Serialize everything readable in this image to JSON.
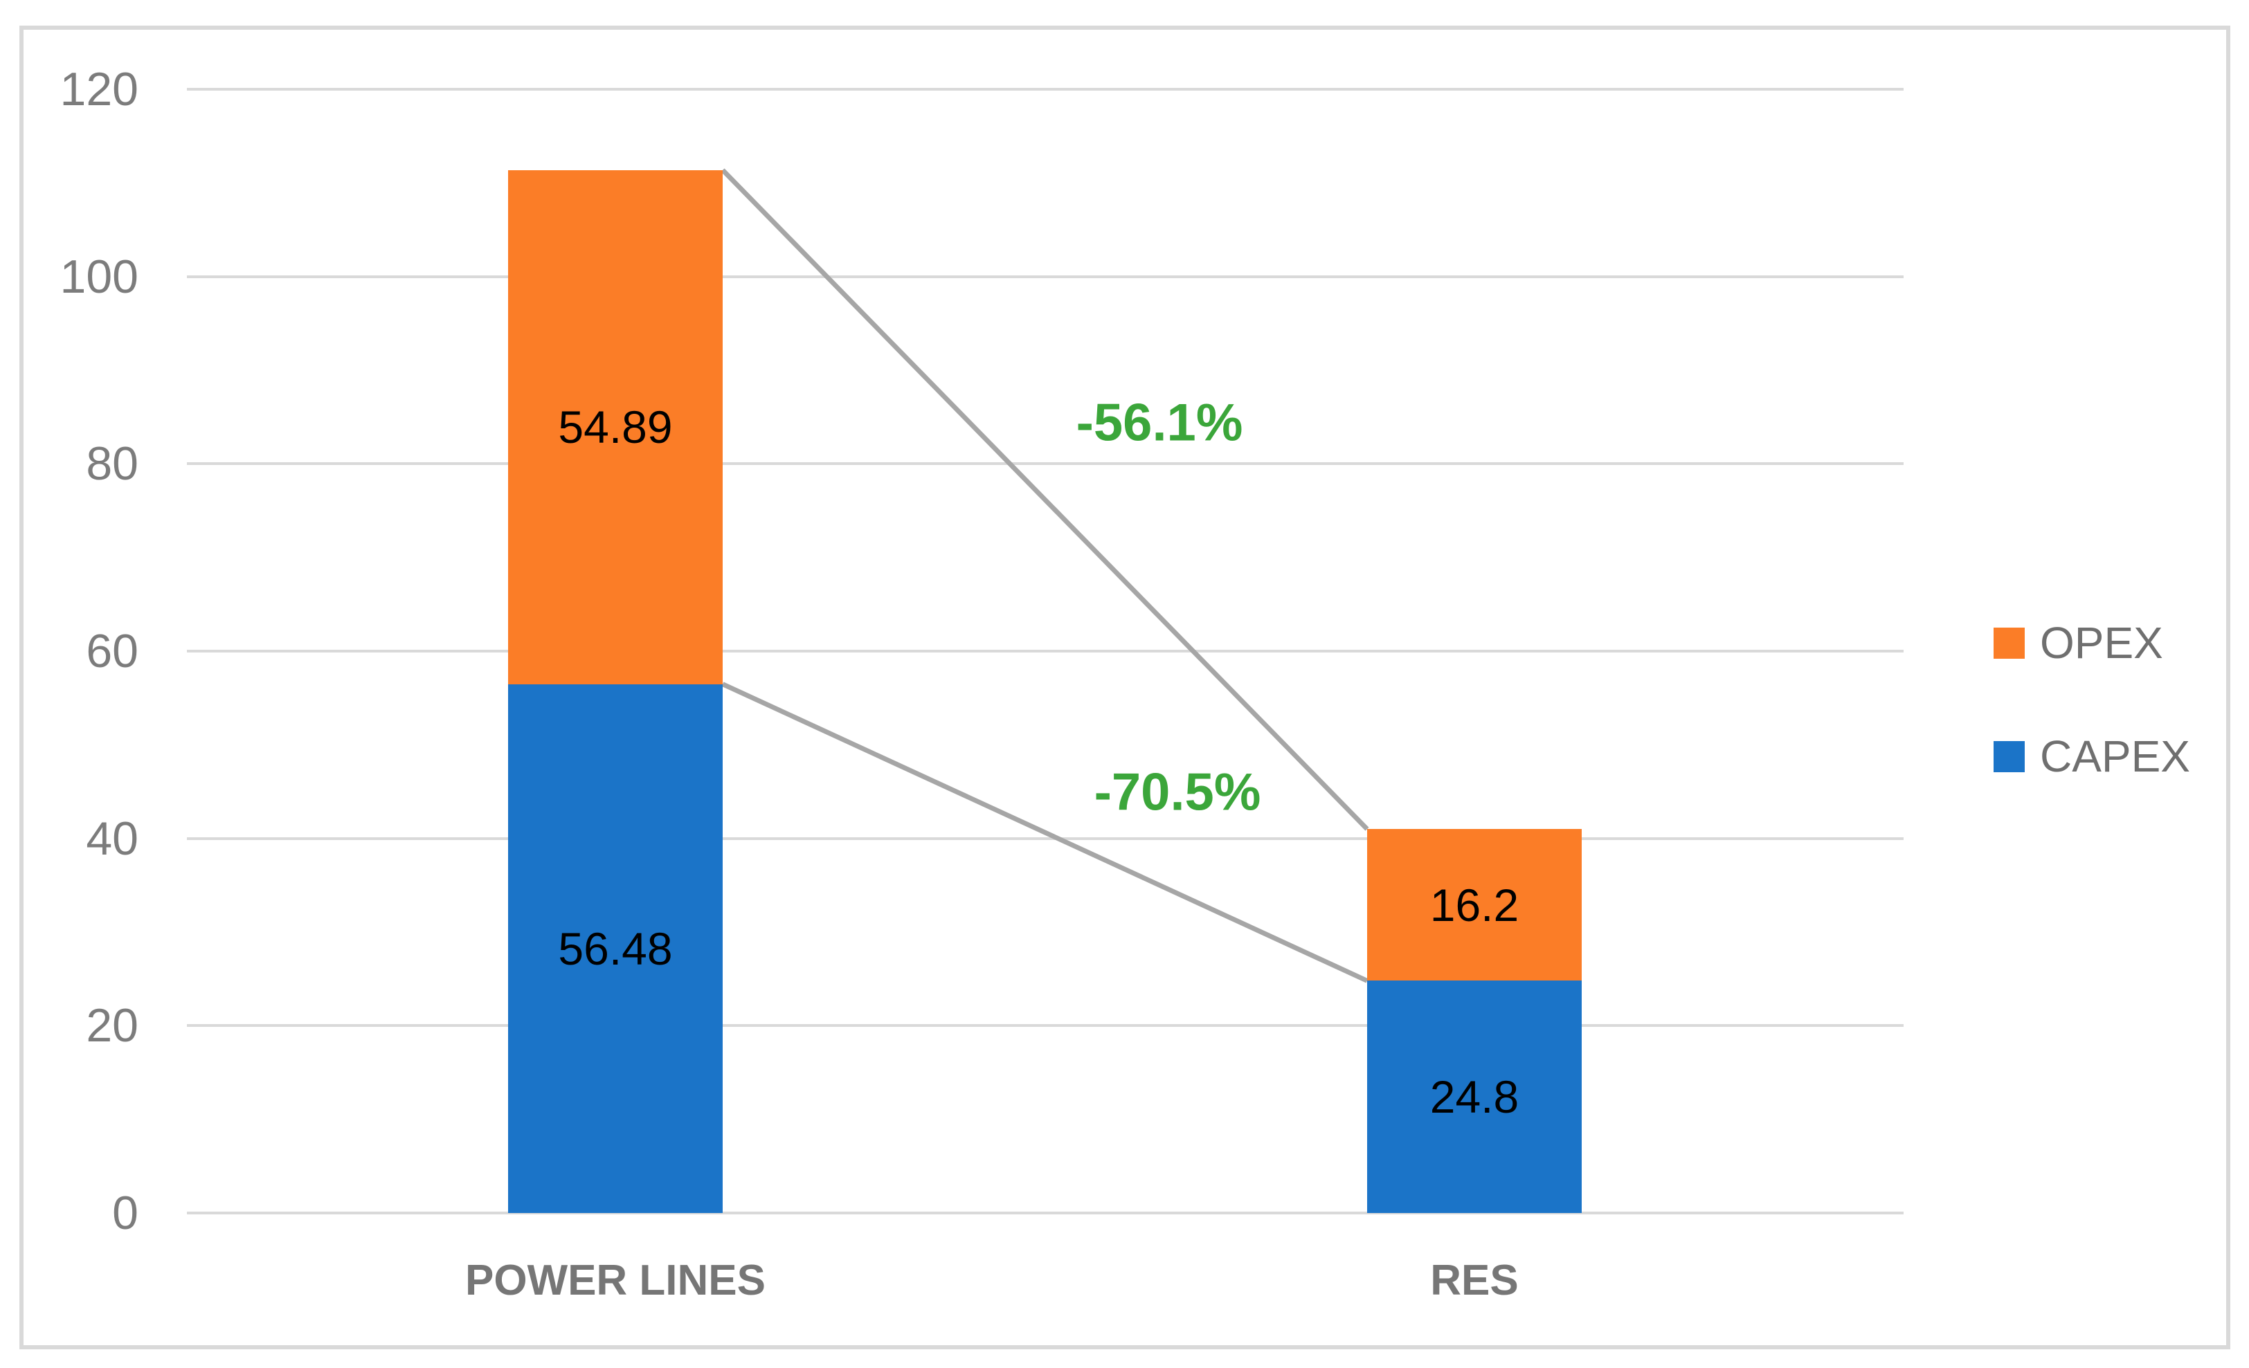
{
  "chart_data": {
    "type": "bar",
    "stacked": true,
    "categories": [
      "POWER LINES",
      "RES"
    ],
    "series": [
      {
        "name": "CAPEX",
        "color": "#1B74C8",
        "values": [
          56.48,
          24.8
        ],
        "labels": [
          "56.48",
          "24.8"
        ]
      },
      {
        "name": "OPEX",
        "color": "#FB7D27",
        "values": [
          54.89,
          16.2
        ],
        "labels": [
          "54.89",
          "16.2"
        ]
      }
    ],
    "totals": [
      111.37,
      41.0
    ],
    "annotations": [
      {
        "text": "-56.1%",
        "color": "#3BA63A"
      },
      {
        "text": "-70.5%",
        "color": "#3BA63A"
      }
    ],
    "ylim": [
      0,
      120
    ],
    "y_ticks": [
      0,
      20,
      40,
      60,
      80,
      100,
      120
    ],
    "grid": true,
    "gridline_color": "#D9D9D9",
    "connector_color": "#A6A6A6",
    "legend": {
      "position": "right",
      "items": [
        {
          "label": "OPEX",
          "color": "#FB7D27"
        },
        {
          "label": "CAPEX",
          "color": "#1B74C8"
        }
      ]
    }
  }
}
